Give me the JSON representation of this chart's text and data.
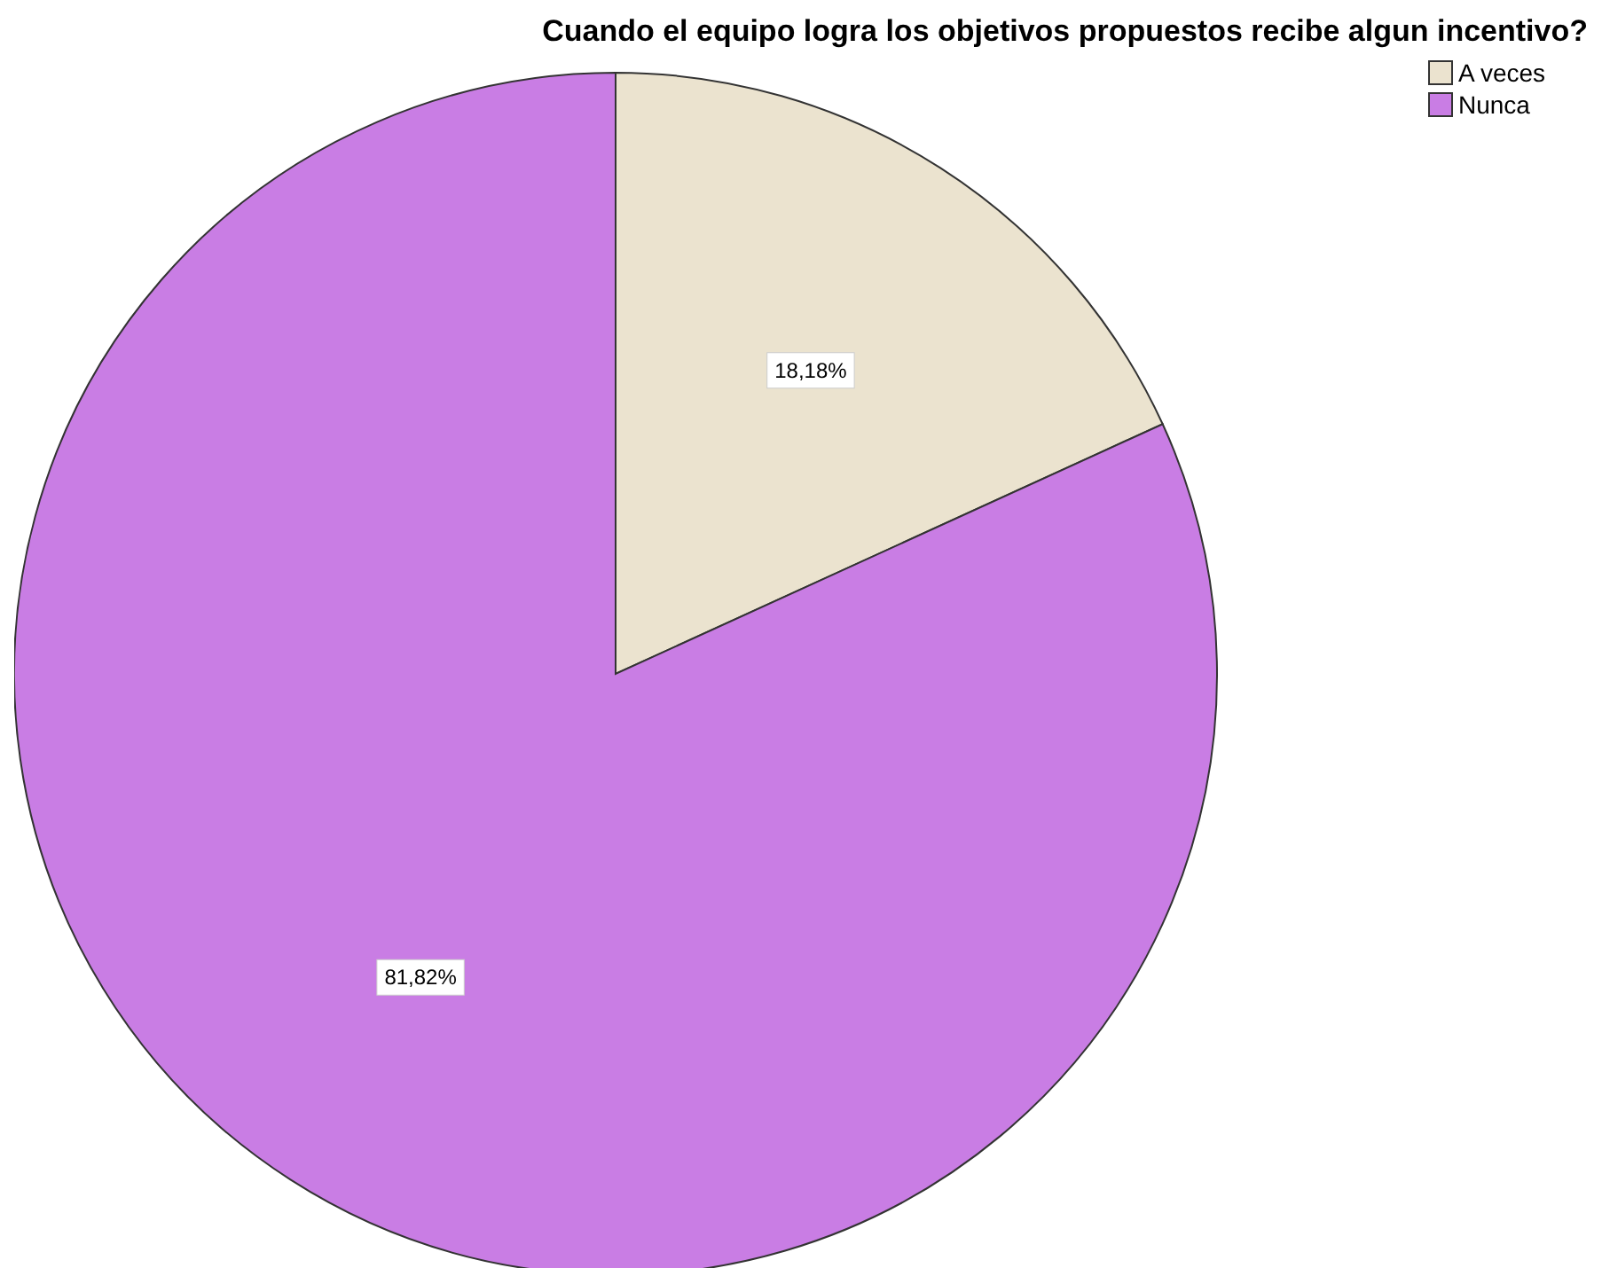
{
  "chart_data": {
    "type": "pie",
    "title": "Cuando el equipo logra los objetivos propuestos recibe algun incentivo?",
    "categories": [
      "A veces",
      "Nunca"
    ],
    "values": [
      18.18,
      81.82
    ],
    "value_labels": [
      "18,18%",
      "81,82%"
    ],
    "colors": [
      "#ebe3cf",
      "#c97de4"
    ],
    "legend": "top right"
  }
}
